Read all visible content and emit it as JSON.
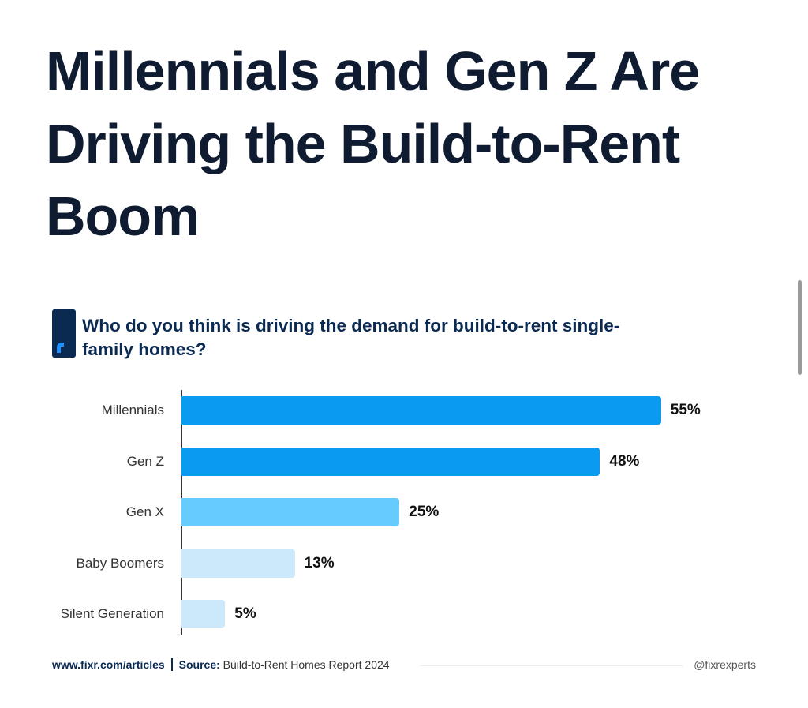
{
  "title": "Millennials and Gen Z Are Driving the Build-to-Rent Boom",
  "footer": {
    "url": "www.fixr.com/articles",
    "source_label": "Source:",
    "source": "Build-to-Rent Homes Report 2024",
    "handle": "@fixrexperts"
  },
  "chart_data": {
    "type": "bar",
    "orientation": "horizontal",
    "title": "Who do you think is driving the demand for build-to-rent single-family homes?",
    "categories": [
      "Millennials",
      "Gen Z",
      "Gen X",
      "Baby Boomers",
      "Silent Generation"
    ],
    "values": [
      55,
      48,
      25,
      13,
      5
    ],
    "value_labels": [
      "55%",
      "48%",
      "25%",
      "13%",
      "5%"
    ],
    "colors": [
      "#0a9af0",
      "#0a9af0",
      "#66cbff",
      "#cce9fc",
      "#cce9fc"
    ],
    "xlim": [
      0,
      60
    ],
    "unit": "%"
  }
}
